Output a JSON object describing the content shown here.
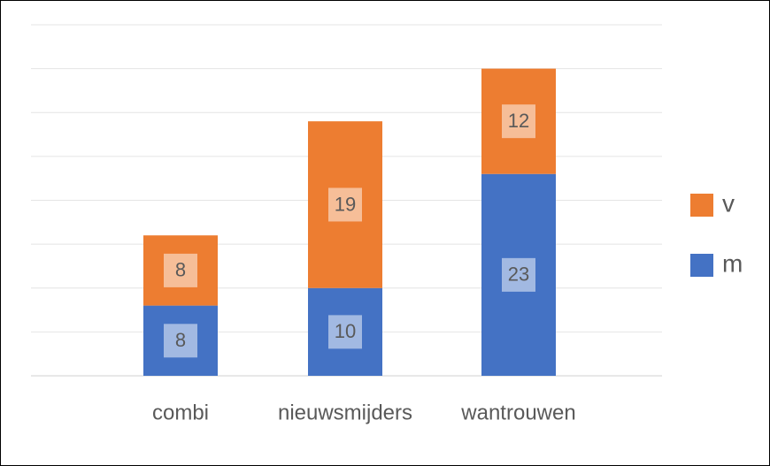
{
  "chart_data": {
    "type": "bar",
    "stacked": true,
    "categories": [
      "combi",
      "nieuwsmijders",
      "wantrouwen"
    ],
    "series": [
      {
        "name": "m",
        "color": "#4472c4",
        "values": [
          8,
          10,
          23
        ]
      },
      {
        "name": "v",
        "color": "#ed7d31",
        "values": [
          8,
          19,
          12
        ]
      }
    ],
    "ylim": [
      0,
      40
    ],
    "yticks": [
      0,
      5,
      10,
      15,
      20,
      25,
      30,
      35,
      40
    ],
    "grid": true,
    "legend": "right"
  }
}
